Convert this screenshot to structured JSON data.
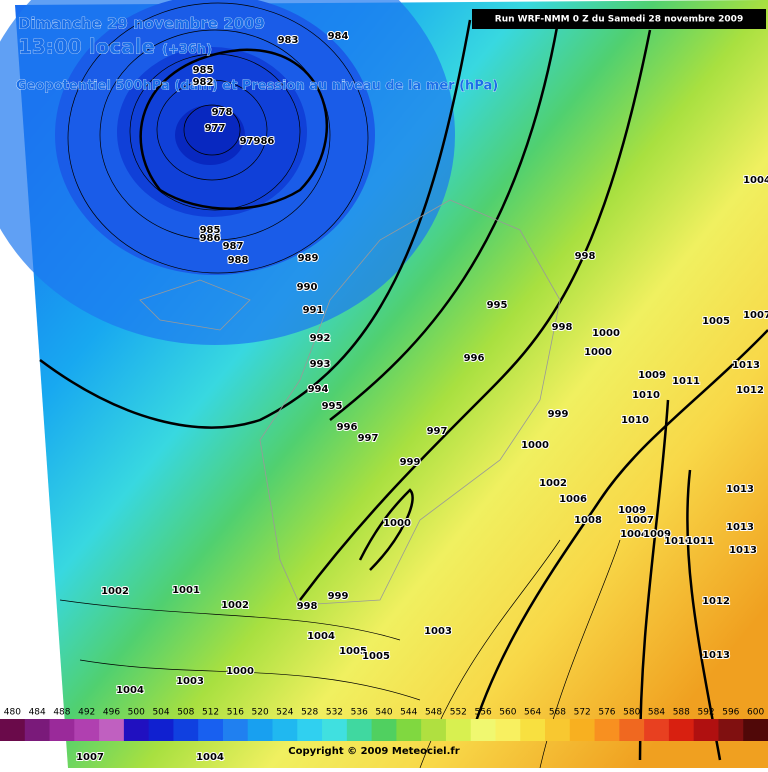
{
  "header": {
    "date": "Dimanche 29 novembre 2009",
    "time": "13:00 locale",
    "lead": "(+36h)",
    "subtitle": "Geopotentiel 500hPa (dam) et Pression au niveau de la mer (hPa)",
    "run": "Run WRF-NMM 0 Z du Samedi 28 novembre 2009"
  },
  "isobar_labels": [
    "983",
    "984",
    "985",
    "982",
    "978",
    "977",
    "97986",
    "985",
    "986",
    "987",
    "988",
    "989",
    "990",
    "991",
    "992",
    "993",
    "994",
    "995",
    "996",
    "997",
    "998",
    "995",
    "996",
    "998",
    "999",
    "997",
    "999",
    "1000",
    "1000",
    "1000",
    "1000",
    "1002",
    "1001",
    "1002",
    "998",
    "999",
    "1004",
    "1005",
    "1005",
    "1003",
    "1000",
    "1003",
    "1004",
    "1004",
    "1007",
    "1006",
    "1008",
    "1009",
    "1007",
    "1004",
    "1009",
    "1010",
    "1011",
    "1013",
    "1013",
    "1013",
    "1012",
    "1013",
    "1010",
    "1009",
    "1011",
    "1005",
    "1013",
    "1012",
    "1004",
    "1007",
    "1010",
    "1002"
  ],
  "scale": {
    "labels": [
      480,
      484,
      488,
      492,
      496,
      500,
      504,
      508,
      512,
      516,
      520,
      524,
      528,
      532,
      536,
      540,
      544,
      548,
      552,
      556,
      560,
      564,
      568,
      572,
      576,
      580,
      584,
      588,
      592,
      596,
      600
    ]
  },
  "footer": {
    "copyright": "Copyright © 2009 Meteociel.fr"
  }
}
